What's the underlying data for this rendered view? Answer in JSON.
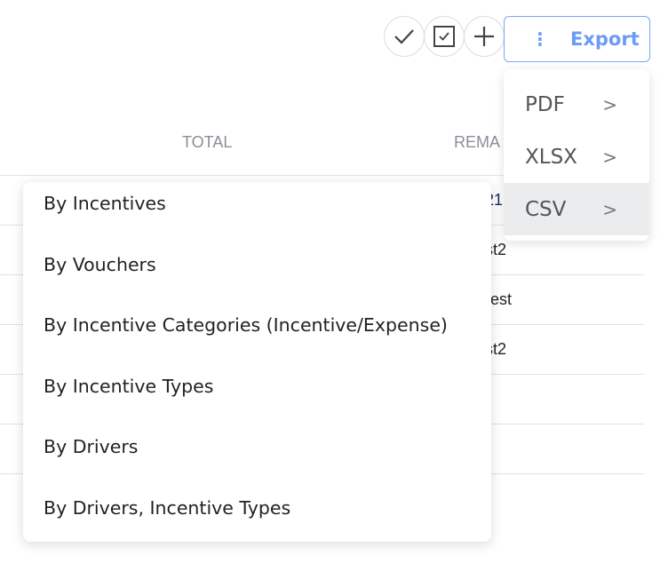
{
  "toolbar": {
    "export_label": "Export",
    "icons": [
      "check-icon",
      "checkbox-icon",
      "plus-icon"
    ]
  },
  "table": {
    "headers": [
      "TOTAL",
      "REMA"
    ],
    "cells": [
      "21",
      "st2",
      "est",
      "st2"
    ]
  },
  "export_menu": {
    "items": [
      {
        "label": "PDF"
      },
      {
        "label": "XLSX"
      },
      {
        "label": "CSV",
        "active": true
      }
    ]
  },
  "report_menu": {
    "items": [
      "By Incentives",
      "By Vouchers",
      "By Incentive Categories (Incentive/Expense)",
      "By Incentive Types",
      "By Drivers",
      "By Drivers, Incentive Types"
    ]
  },
  "colors": {
    "accent": "#6b9cf2",
    "hover": "#ebecee"
  }
}
